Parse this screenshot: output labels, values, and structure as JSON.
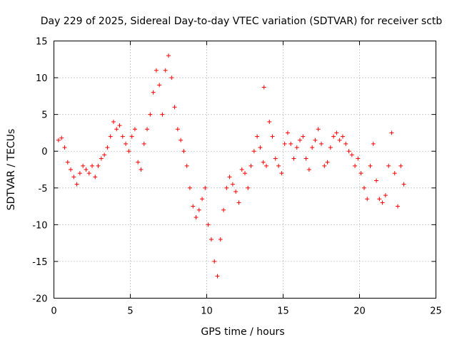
{
  "chart_data": {
    "type": "scatter",
    "title": "Day 229 of 2025, Sidereal Day-to-day VTEC variation (SDTVAR) for receiver sctb",
    "xlabel": "GPS time / hours",
    "ylabel": "SDTVAR / TECUs",
    "xlim": [
      0,
      25
    ],
    "ylim": [
      -20,
      15
    ],
    "xticks": [
      0,
      5,
      10,
      15,
      20,
      25
    ],
    "yticks": [
      -20,
      -15,
      -10,
      -5,
      0,
      5,
      10,
      15
    ],
    "grid": true,
    "marker": "+",
    "colors": {
      "series": "#ff0000",
      "grid": "#a0a0a0",
      "axes": "#000000"
    },
    "series": [
      {
        "name": "SDTVAR",
        "x": [
          0.3,
          0.5,
          0.7,
          0.9,
          1.1,
          1.3,
          1.5,
          1.7,
          1.9,
          2.1,
          2.3,
          2.5,
          2.7,
          2.9,
          3.1,
          3.3,
          3.5,
          3.7,
          3.9,
          4.1,
          4.3,
          4.5,
          4.7,
          4.9,
          5.1,
          5.3,
          5.5,
          5.7,
          5.9,
          6.1,
          6.3,
          6.5,
          6.7,
          6.9,
          7.1,
          7.3,
          7.5,
          7.7,
          7.9,
          8.1,
          8.3,
          8.5,
          8.7,
          8.9,
          9.1,
          9.3,
          9.5,
          9.7,
          9.9,
          10.1,
          10.3,
          10.5,
          10.7,
          10.9,
          11.1,
          11.3,
          11.5,
          11.7,
          11.9,
          12.1,
          12.3,
          12.5,
          12.7,
          12.9,
          13.1,
          13.3,
          13.5,
          13.7,
          13.9,
          14.1,
          14.3,
          14.5,
          14.7,
          14.9,
          15.1,
          15.3,
          15.5,
          15.7,
          15.9,
          16.1,
          16.3,
          16.5,
          16.7,
          16.9,
          17.1,
          17.3,
          17.5,
          17.7,
          17.9,
          18.1,
          18.3,
          18.5,
          18.7,
          18.9,
          19.1,
          19.3,
          19.5,
          19.7,
          19.9,
          20.1,
          20.3,
          20.5,
          20.7,
          20.9,
          21.1,
          21.3,
          21.5,
          21.7,
          21.9,
          22.1,
          22.3,
          22.5,
          22.7,
          22.9
        ],
        "y": [
          1.5,
          1.8,
          0.5,
          -1.5,
          -2.5,
          -3.5,
          -4.5,
          -3.0,
          -2.0,
          -2.5,
          -3.0,
          -2.0,
          -3.5,
          -2.0,
          -1.0,
          -0.5,
          0.5,
          2.0,
          4.0,
          3.0,
          3.5,
          2.0,
          1.0,
          0.0,
          2.0,
          3.0,
          -1.5,
          -2.5,
          1.0,
          3.0,
          5.0,
          8.0,
          11.0,
          9.0,
          5.0,
          11.0,
          13.0,
          10.0,
          6.0,
          3.0,
          1.5,
          0.0,
          -2.0,
          -5.0,
          -7.5,
          -9.0,
          -8.0,
          -6.5,
          -5.0,
          -10.0,
          -12.0,
          -15.0,
          -17.0,
          -12.0,
          -8.0,
          -5.0,
          -3.5,
          -4.5,
          -5.5,
          -7.0,
          -2.5,
          -3.0,
          -5.0,
          -2.0,
          0.0,
          2.0,
          0.5,
          -1.5,
          -2.0,
          4.0,
          2.0,
          -1.0,
          -2.0,
          -3.0,
          1.0,
          2.5,
          1.0,
          -1.0,
          0.5,
          1.5,
          2.0,
          -1.0,
          -2.5,
          0.5,
          1.5,
          3.0,
          1.0,
          -2.0,
          -1.5,
          0.5,
          2.0,
          2.5,
          1.5,
          2.0,
          1.0,
          0.0,
          -0.5,
          -2.0,
          -1.0,
          -3.0,
          -5.0,
          -6.5,
          -2.0,
          1.0,
          -4.0,
          -6.5,
          -7.0,
          -6.0,
          -2.0,
          2.5,
          -3.0,
          -7.5,
          -2.0,
          -4.5
        ]
      }
    ],
    "annotations": [
      {
        "x": 13.75,
        "y": 8.7
      }
    ]
  }
}
